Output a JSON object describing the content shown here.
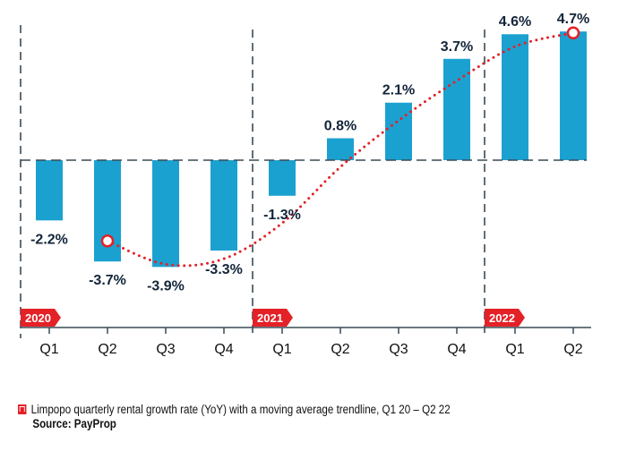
{
  "chart_data": {
    "type": "bar",
    "years": [
      "2020",
      "2021",
      "2022"
    ],
    "categories": [
      "Q1",
      "Q2",
      "Q3",
      "Q4",
      "Q1",
      "Q2",
      "Q3",
      "Q4",
      "Q1",
      "Q2"
    ],
    "values": [
      -2.2,
      -3.7,
      -3.9,
      -3.3,
      -1.3,
      0.8,
      2.1,
      3.7,
      4.6,
      4.7
    ],
    "labels": [
      "-2.2%",
      "-3.7%",
      "-3.9%",
      "-3.3%",
      "-1.3%",
      "0.8%",
      "2.1%",
      "3.7%",
      "4.6%",
      "4.7%"
    ],
    "trendline": {
      "type": "moving average",
      "start_index": 1,
      "values": [
        -2.95,
        -3.8,
        -3.6,
        -2.3,
        -0.25,
        1.45,
        2.9,
        4.15,
        4.65
      ]
    },
    "ylim": [
      -4.5,
      5.0
    ],
    "grid": false,
    "colors": {
      "bar": "#1ba1d0",
      "trend": "#e32127",
      "year_tag": "#e32127",
      "axis": "#3a4a55",
      "label": "#13253a"
    }
  },
  "caption": {
    "text": "Limpopo quarterly rental growth rate (YoY) with a moving average trendline, Q1 20 – Q2 22",
    "source": "Source: PayProp"
  }
}
